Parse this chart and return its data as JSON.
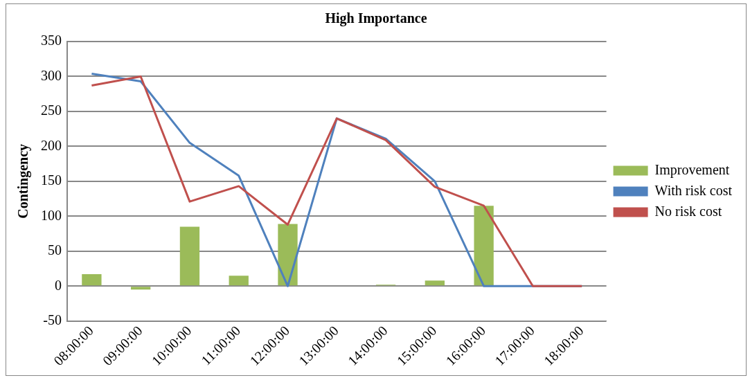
{
  "chart_data": {
    "type": "bar",
    "title": "High Importance",
    "ylabel": "Contingency",
    "categories": [
      "08:00:00",
      "09:00:00",
      "10:00:00",
      "11:00:00",
      "12:00:00",
      "13:00:00",
      "14:00:00",
      "15:00:00",
      "16:00:00",
      "17:00:00",
      "18:00:00"
    ],
    "series": [
      {
        "name": "Improvement",
        "color": "#9bbb59",
        "values": [
          17,
          -5,
          85,
          15,
          89,
          0,
          2,
          8,
          115,
          0,
          0
        ]
      },
      {
        "name": "With risk cost",
        "type": "line",
        "color": "#4f81bd",
        "values": [
          304,
          293,
          205,
          158,
          0,
          240,
          211,
          150,
          0,
          0,
          0
        ]
      },
      {
        "name": "No risk cost",
        "type": "line",
        "color": "#c0504d",
        "values": [
          287,
          300,
          121,
          143,
          88,
          240,
          209,
          142,
          115,
          0,
          0
        ]
      }
    ],
    "ylim": [
      -50,
      350
    ],
    "yticks": [
      -50,
      0,
      50,
      100,
      150,
      200,
      250,
      300,
      350
    ],
    "grid": "y",
    "legend": "right",
    "marker": "none"
  }
}
